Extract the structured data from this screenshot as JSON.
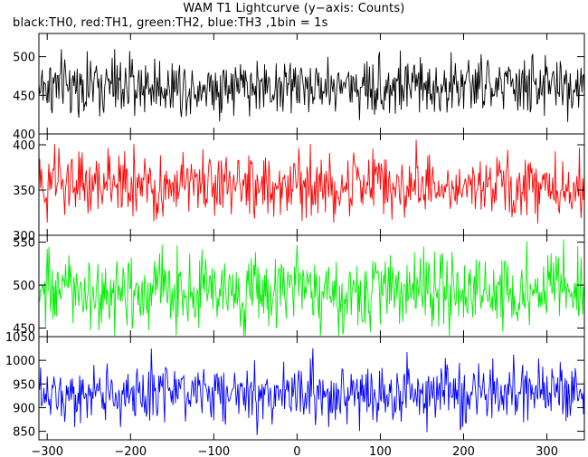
{
  "title": "WAM T1 Lightcurve (y−axis: Counts)",
  "subtitle": "black:TH0, red:TH1, green:TH2, blue:TH3 ,1bin = 1s",
  "chart_data": {
    "type": "line",
    "title": "WAM T1 Lightcurve (y−axis: Counts)",
    "subtitle": "black:TH0, red:TH1, green:TH2, blue:TH3 ,1bin = 1s",
    "x_range": [
      -310,
      345
    ],
    "x_step": 1,
    "x_ticks": [
      -300,
      -200,
      -100,
      0,
      100,
      200,
      300
    ],
    "x_tick_labels": [
      "−300",
      "−200",
      "−100",
      "0",
      "100",
      "200",
      "300"
    ],
    "grid": false,
    "panels": [
      {
        "name": "TH0",
        "color": "#000000",
        "ylim": [
          400,
          530
        ],
        "yticks": [
          400,
          450,
          500
        ],
        "ytick_labels": [
          "400",
          "450",
          "500"
        ],
        "mean": 462,
        "sd": 19
      },
      {
        "name": "TH1",
        "color": "#ff0000",
        "ylim": [
          300,
          412
        ],
        "yticks": [
          300,
          350,
          400
        ],
        "ytick_labels": [
          "300",
          "350",
          "400"
        ],
        "mean": 355,
        "sd": 18
      },
      {
        "name": "TH2",
        "color": "#00ee00",
        "ylim": [
          440,
          558
        ],
        "yticks": [
          450,
          500,
          550
        ],
        "ytick_labels": [
          "450",
          "500",
          "550"
        ],
        "mean": 492,
        "sd": 22
      },
      {
        "name": "TH3",
        "color": "#0000ff",
        "ylim": [
          832,
          1050
        ],
        "yticks": [
          850,
          900,
          950,
          1000,
          1050
        ],
        "ytick_labels": [
          "850",
          "900",
          "950",
          "1000",
          "1050"
        ],
        "mean": 930,
        "sd": 31
      }
    ]
  }
}
